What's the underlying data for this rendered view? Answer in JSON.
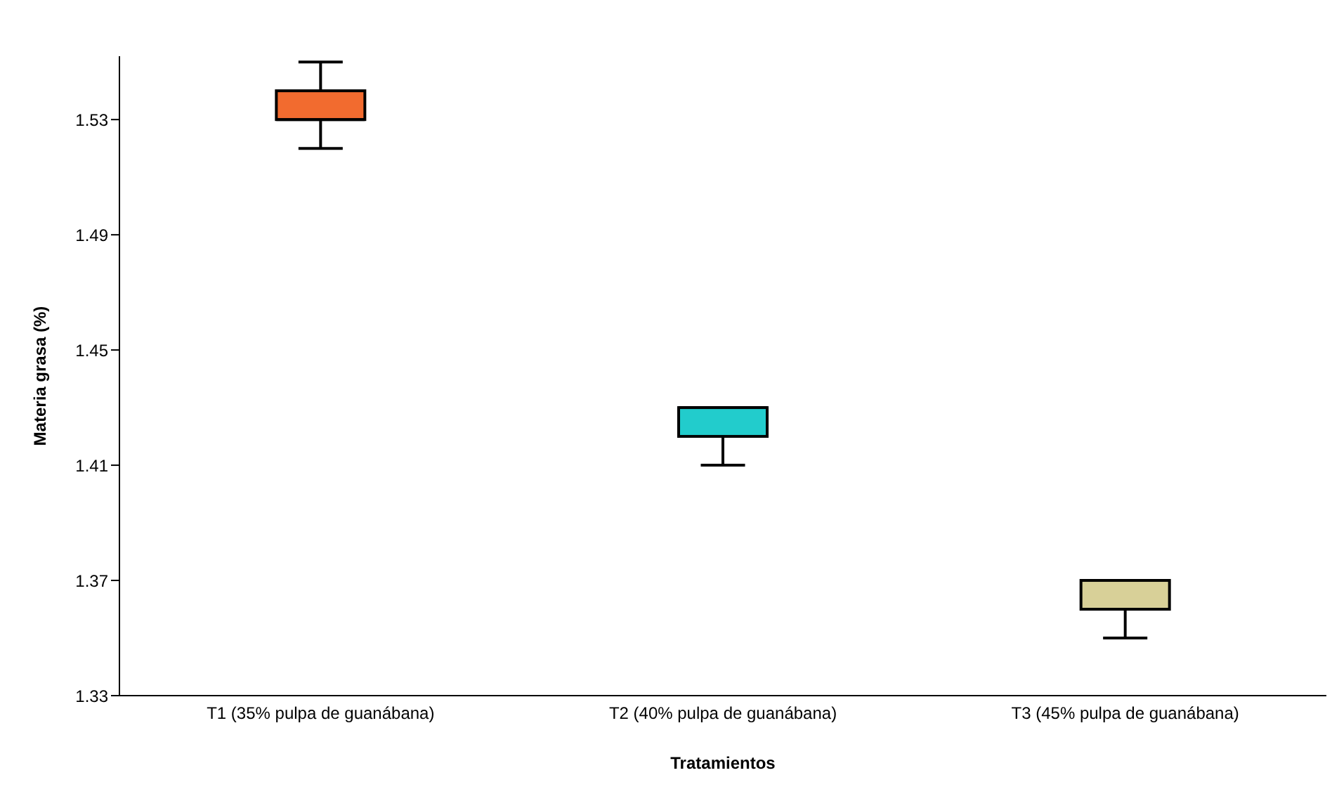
{
  "chart_data": {
    "type": "box",
    "xlabel": "Tratamientos",
    "ylabel": "Materia grasa (%)",
    "categories": [
      "T1 (35% pulpa de guanábana)",
      "T2 (40% pulpa de guanábana)",
      "T3 (45% pulpa de guanábana)"
    ],
    "colors": [
      "#f26b2f",
      "#22cccc",
      "#d8d098"
    ],
    "boxes": [
      {
        "low": 1.52,
        "q1": 1.53,
        "median": 1.53,
        "q3": 1.54,
        "high": 1.55
      },
      {
        "low": 1.41,
        "q1": 1.42,
        "median": 1.43,
        "q3": 1.43,
        "high": 1.43
      },
      {
        "low": 1.35,
        "q1": 1.36,
        "median": 1.37,
        "q3": 1.37,
        "high": 1.37
      }
    ],
    "ylim": [
      1.33,
      1.552
    ],
    "yticks": [
      1.33,
      1.37,
      1.41,
      1.45,
      1.49,
      1.53
    ],
    "grid": false
  }
}
